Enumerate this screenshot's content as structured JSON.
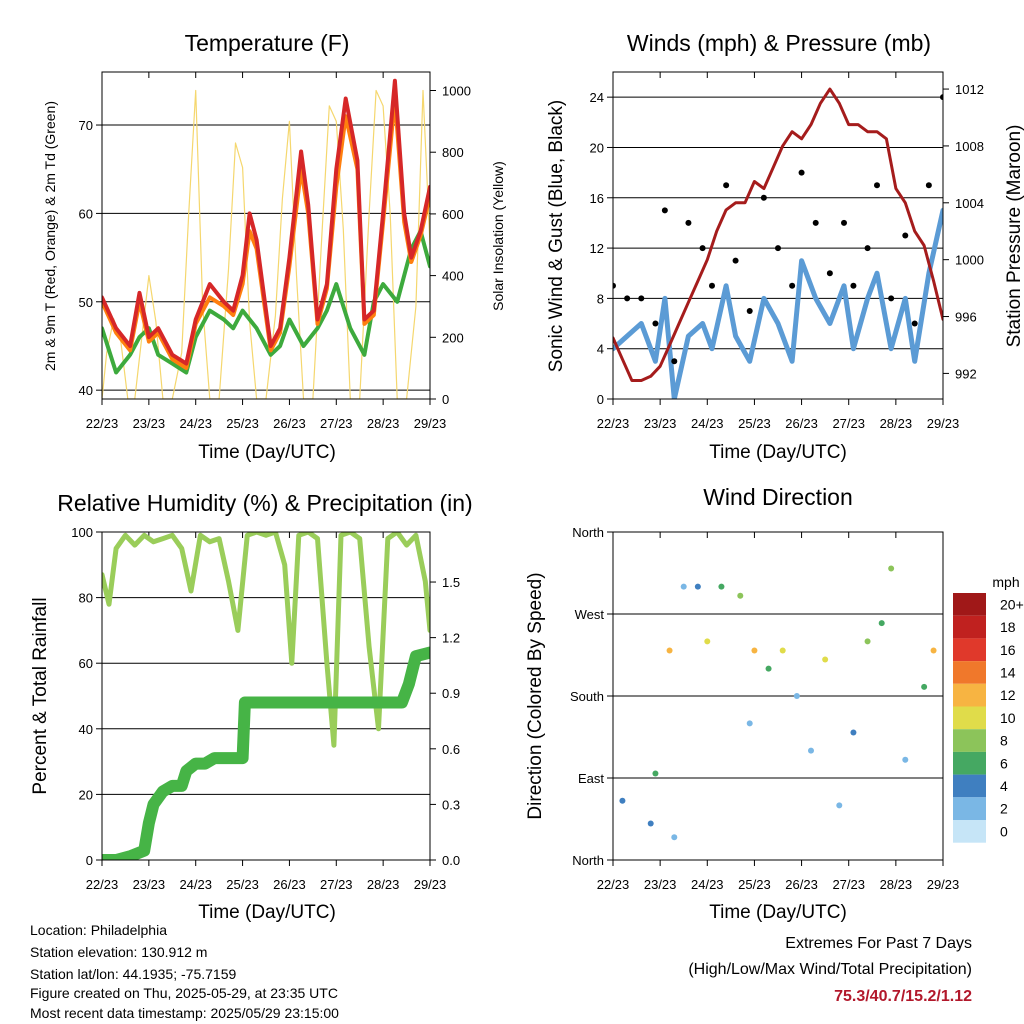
{
  "chart_data": [
    {
      "type": "line",
      "title": "Temperature (F)",
      "xlabel": "Time (Day/UTC)",
      "ylabel": "2m & 9m T (Red, Orange) & 2m Td (Green)",
      "y2label": "Solar Insolation (Yellow)",
      "x_ticks": [
        "22/23",
        "23/23",
        "24/23",
        "25/23",
        "26/23",
        "27/23",
        "28/23",
        "29/23"
      ],
      "ylim": [
        39,
        76
      ],
      "y_ticks": [
        40,
        50,
        60,
        70
      ],
      "y2lim": [
        0,
        1060
      ],
      "y2_ticks": [
        0,
        200,
        400,
        600,
        800,
        1000
      ],
      "grid": true,
      "series": [
        {
          "color": "#d62728",
          "x": [
            0,
            0.3,
            0.6,
            0.8,
            1.0,
            1.2,
            1.5,
            1.8,
            2.0,
            2.3,
            2.6,
            2.8,
            3.0,
            3.15,
            3.3,
            3.6,
            3.8,
            4.0,
            4.25,
            4.4,
            4.6,
            4.8,
            5.0,
            5.2,
            5.45,
            5.6,
            5.8,
            6.0,
            6.25,
            6.45,
            6.6,
            6.8,
            7.0
          ],
          "values": [
            50.5,
            47,
            45,
            51,
            46,
            47,
            44,
            43,
            48,
            52,
            50,
            49,
            53,
            60,
            57,
            45,
            47,
            55,
            67,
            61,
            48,
            52,
            65,
            73,
            66,
            48,
            49,
            60,
            75,
            60,
            55,
            58,
            63
          ]
        },
        {
          "color": "#ff7f0e",
          "x": [
            0,
            0.3,
            0.6,
            0.8,
            1.0,
            1.2,
            1.5,
            1.8,
            2.0,
            2.3,
            2.6,
            2.8,
            3.0,
            3.15,
            3.3,
            3.6,
            3.8,
            4.0,
            4.25,
            4.4,
            4.6,
            4.8,
            5.0,
            5.2,
            5.45,
            5.6,
            5.8,
            6.0,
            6.25,
            6.45,
            6.6,
            6.8,
            7.0
          ],
          "values": [
            50,
            46.5,
            44.5,
            50,
            45.5,
            46.5,
            43.5,
            42.5,
            47.5,
            50.5,
            49.5,
            48.5,
            52,
            58,
            56,
            44.5,
            46.5,
            54,
            65,
            60,
            47.5,
            51.5,
            63,
            71,
            65,
            47.5,
            48.5,
            59,
            73,
            59,
            54.5,
            57.5,
            62
          ]
        },
        {
          "color": "#3daa3d",
          "x": [
            0,
            0.3,
            0.6,
            0.8,
            1.0,
            1.2,
            1.5,
            1.8,
            2.0,
            2.3,
            2.6,
            2.8,
            3.0,
            3.3,
            3.6,
            3.8,
            4.0,
            4.3,
            4.6,
            4.8,
            5.0,
            5.3,
            5.6,
            5.8,
            6.0,
            6.3,
            6.6,
            6.8,
            7.0
          ],
          "values": [
            47,
            42,
            44,
            46,
            47,
            44,
            43,
            42,
            46,
            49,
            48,
            47,
            49,
            47,
            44,
            45,
            48,
            45,
            47,
            49,
            52,
            47,
            44,
            50,
            52,
            50,
            56,
            58,
            54
          ]
        },
        {
          "color": "#f5d76e",
          "axis": "y2",
          "x": [
            0,
            0.1,
            0.25,
            0.4,
            0.55,
            0.7,
            0.85,
            1.0,
            1.15,
            1.3,
            1.5,
            1.7,
            1.85,
            2.0,
            2.15,
            2.3,
            2.5,
            2.7,
            2.85,
            3.0,
            3.15,
            3.3,
            3.5,
            3.7,
            3.85,
            4.0,
            4.15,
            4.3,
            4.5,
            4.7,
            4.85,
            5.0,
            5.15,
            5.3,
            5.5,
            5.7,
            5.85,
            6.0,
            6.15,
            6.3,
            6.5,
            6.7,
            6.85,
            7.0
          ],
          "values": [
            0,
            150,
            260,
            190,
            0,
            0,
            200,
            400,
            250,
            0,
            0,
            150,
            600,
            1000,
            300,
            0,
            0,
            420,
            830,
            750,
            250,
            0,
            0,
            270,
            650,
            900,
            400,
            0,
            0,
            550,
            950,
            900,
            550,
            0,
            0,
            600,
            1000,
            950,
            600,
            0,
            0,
            300,
            1000,
            500
          ]
        }
      ]
    },
    {
      "type": "line",
      "title": "Winds (mph) & Pressure (mb)",
      "xlabel": "Time (Day/UTC)",
      "ylabel": "Sonic Wind & Gust (Blue, Black)",
      "y2label": "Station Pressure (Maroon)",
      "x_ticks": [
        "22/23",
        "23/23",
        "24/23",
        "25/23",
        "26/23",
        "27/23",
        "28/23",
        "29/23"
      ],
      "ylim": [
        0,
        26
      ],
      "y_ticks": [
        0,
        4,
        8,
        12,
        16,
        20,
        24
      ],
      "y2lim": [
        990.2,
        1013.2
      ],
      "y2_ticks": [
        992,
        996,
        1000,
        1004,
        1008,
        1012
      ],
      "grid": true,
      "series": [
        {
          "color": "#a51c1c",
          "axis": "y2",
          "x": [
            0,
            0.2,
            0.4,
            0.6,
            0.8,
            1.0,
            1.2,
            1.4,
            1.6,
            1.8,
            2.0,
            2.2,
            2.4,
            2.6,
            2.8,
            3.0,
            3.2,
            3.4,
            3.6,
            3.8,
            4.0,
            4.2,
            4.4,
            4.6,
            4.8,
            5.0,
            5.2,
            5.4,
            5.6,
            5.8,
            6.0,
            6.2,
            6.4,
            6.6,
            6.8,
            7.0
          ],
          "values": [
            994.5,
            993,
            991.5,
            991.5,
            991.8,
            992.5,
            994,
            995.5,
            997,
            998.5,
            1000,
            1002,
            1003.5,
            1004,
            1004,
            1005.5,
            1005,
            1006.5,
            1008,
            1009,
            1008.5,
            1009.5,
            1011,
            1012,
            1011,
            1009.5,
            1009.5,
            1009,
            1009,
            1008.5,
            1005,
            1004,
            1002,
            1001,
            998.5,
            995.8
          ]
        },
        {
          "color": "#5b9bd5",
          "x": [
            0,
            0.3,
            0.6,
            0.9,
            1.1,
            1.3,
            1.6,
            1.9,
            2.1,
            2.4,
            2.6,
            2.9,
            3.2,
            3.5,
            3.8,
            4.0,
            4.3,
            4.6,
            4.9,
            5.1,
            5.4,
            5.6,
            5.9,
            6.2,
            6.4,
            6.7,
            7.0
          ],
          "values": [
            4,
            5,
            6,
            3,
            8,
            0,
            5,
            6,
            4,
            9,
            5,
            3,
            8,
            6,
            3,
            11,
            8,
            6,
            9,
            4,
            8,
            10,
            4,
            8,
            3,
            10,
            15
          ]
        },
        {
          "color": "#000000",
          "x": [
            0,
            0.3,
            0.6,
            0.9,
            1.1,
            1.3,
            1.6,
            1.9,
            2.1,
            2.4,
            2.6,
            2.9,
            3.2,
            3.5,
            3.8,
            4.0,
            4.3,
            4.6,
            4.9,
            5.1,
            5.4,
            5.6,
            5.9,
            6.2,
            6.4,
            6.7,
            7.0
          ],
          "values": [
            9,
            8,
            8,
            6,
            15,
            3,
            14,
            12,
            9,
            17,
            11,
            7,
            16,
            12,
            9,
            18,
            14,
            10,
            14,
            9,
            12,
            17,
            8,
            13,
            6,
            17,
            24
          ]
        }
      ]
    },
    {
      "type": "line",
      "title": "Relative Humidity (%) & Precipitation (in)",
      "xlabel": "Time (Day/UTC)",
      "ylabel": "Percent & Total Rainfall",
      "x_ticks": [
        "22/23",
        "23/23",
        "24/23",
        "25/23",
        "26/23",
        "27/23",
        "28/23",
        "29/23"
      ],
      "ylim": [
        0,
        100
      ],
      "y_ticks": [
        0,
        20,
        40,
        60,
        80,
        100
      ],
      "y2lim": [
        0,
        1.77
      ],
      "y2_ticks": [
        "0.0",
        "0.3",
        "0.6",
        "0.9",
        "1.2",
        "1.5"
      ],
      "grid": true,
      "series": [
        {
          "color": "#9acd5a",
          "x": [
            0,
            0.15,
            0.3,
            0.5,
            0.7,
            0.9,
            1.1,
            1.3,
            1.5,
            1.7,
            1.9,
            2.1,
            2.3,
            2.5,
            2.7,
            2.9,
            3.1,
            3.3,
            3.5,
            3.7,
            3.9,
            4.05,
            4.2,
            4.4,
            4.6,
            4.8,
            4.95,
            5.1,
            5.3,
            5.5,
            5.7,
            5.9,
            6.1,
            6.3,
            6.5,
            6.7,
            6.9,
            7.0
          ],
          "values": [
            87,
            78,
            95,
            99,
            96,
            99,
            97,
            98,
            99,
            95,
            82,
            99,
            97,
            98,
            85,
            70,
            99,
            100,
            99,
            100,
            90,
            60,
            99,
            100,
            98,
            60,
            35,
            99,
            100,
            98,
            65,
            40,
            98,
            100,
            96,
            99,
            85,
            70
          ]
        },
        {
          "color": "#46b446",
          "axis": "y2",
          "x": [
            0,
            0.3,
            0.6,
            0.9,
            1.0,
            1.1,
            1.3,
            1.5,
            1.7,
            1.8,
            2.0,
            2.2,
            2.4,
            2.7,
            3.0,
            3.05,
            3.3,
            3.6,
            4.0,
            4.5,
            5.0,
            5.5,
            6.0,
            6.4,
            6.55,
            6.7,
            7.0
          ],
          "values": [
            0,
            0,
            0.02,
            0.05,
            0.2,
            0.3,
            0.37,
            0.4,
            0.4,
            0.48,
            0.52,
            0.52,
            0.55,
            0.55,
            0.55,
            0.85,
            0.85,
            0.85,
            0.85,
            0.85,
            0.85,
            0.85,
            0.85,
            0.85,
            0.95,
            1.1,
            1.12
          ]
        }
      ]
    },
    {
      "type": "scatter",
      "title": "Wind Direction",
      "xlabel": "Time (Day/UTC)",
      "ylabel": "Direction (Colored By Speed)",
      "x_ticks": [
        "22/23",
        "23/23",
        "24/23",
        "25/23",
        "26/23",
        "27/23",
        "28/23",
        "29/23"
      ],
      "y_ticks": [
        "North",
        "East",
        "South",
        "West",
        "North"
      ],
      "ylim": [
        0,
        360
      ],
      "legend_title": "mph",
      "legend_labels": [
        "0",
        "2",
        "4",
        "6",
        "8",
        "10",
        "12",
        "14",
        "16",
        "18",
        "20+"
      ],
      "legend_colors": [
        "#c6e5f7",
        "#7ab7e5",
        "#3f7fc0",
        "#45a862",
        "#8cc45a",
        "#e0dc4a",
        "#f7b442",
        "#f0782b",
        "#e0392b",
        "#c0211f",
        "#a01818"
      ],
      "cluster_centers": [
        {
          "x": 0.2,
          "dir": 65,
          "speed": 3
        },
        {
          "x": 0.8,
          "dir": 40,
          "speed": 3
        },
        {
          "x": 0.9,
          "dir": 95,
          "speed": 5
        },
        {
          "x": 1.2,
          "dir": 230,
          "speed": 11
        },
        {
          "x": 1.3,
          "dir": 25,
          "speed": 2
        },
        {
          "x": 1.5,
          "dir": 300,
          "speed": 2
        },
        {
          "x": 1.8,
          "dir": 300,
          "speed": 4
        },
        {
          "x": 2.0,
          "dir": 240,
          "speed": 10
        },
        {
          "x": 2.3,
          "dir": 300,
          "speed": 6
        },
        {
          "x": 2.7,
          "dir": 290,
          "speed": 7
        },
        {
          "x": 3.0,
          "dir": 230,
          "speed": 12
        },
        {
          "x": 2.9,
          "dir": 150,
          "speed": 2
        },
        {
          "x": 3.3,
          "dir": 210,
          "speed": 6
        },
        {
          "x": 3.6,
          "dir": 230,
          "speed": 10
        },
        {
          "x": 3.9,
          "dir": 180,
          "speed": 2
        },
        {
          "x": 4.2,
          "dir": 120,
          "speed": 1
        },
        {
          "x": 4.5,
          "dir": 220,
          "speed": 9
        },
        {
          "x": 4.8,
          "dir": 60,
          "speed": 1
        },
        {
          "x": 5.1,
          "dir": 140,
          "speed": 3
        },
        {
          "x": 5.4,
          "dir": 240,
          "speed": 8
        },
        {
          "x": 5.7,
          "dir": 260,
          "speed": 5
        },
        {
          "x": 5.9,
          "dir": 320,
          "speed": 7
        },
        {
          "x": 6.2,
          "dir": 110,
          "speed": 2
        },
        {
          "x": 6.6,
          "dir": 190,
          "speed": 5
        },
        {
          "x": 6.8,
          "dir": 230,
          "speed": 12
        }
      ]
    }
  ],
  "footer": {
    "location": "Location: Philadelphia",
    "elevation": "Station elevation: 130.912 m",
    "latlon": "Station lat/lon: 44.1935; -75.7159",
    "created": "Figure created on Thu, 2025-05-29, at 23:35 UTC",
    "recent": "Most recent data timestamp: 2025/05/29 23:15:00"
  },
  "extremes": {
    "line1": "Extremes For Past 7 Days",
    "line2": "(High/Low/Max Wind/Total Precipitation)",
    "values": "75.3/40.7/15.2/1.12"
  }
}
